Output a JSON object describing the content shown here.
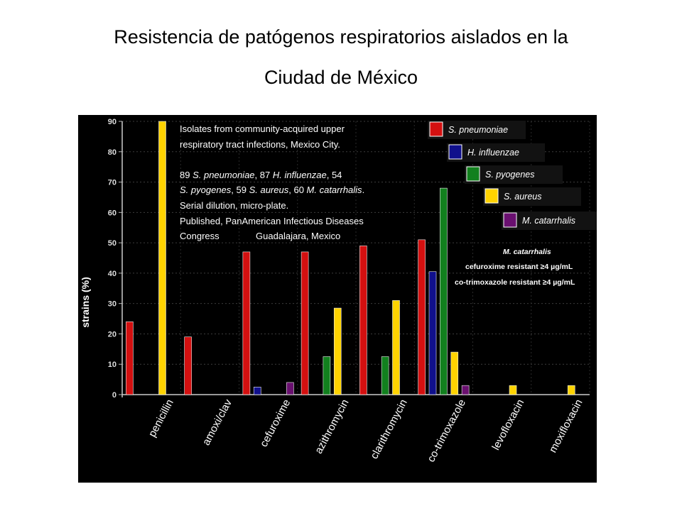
{
  "page": {
    "title_line1": "Resistencia de patógenos respiratorios aislados en la",
    "title_line2": "Ciudad de México"
  },
  "chart_data": {
    "type": "bar",
    "ylabel": "strains (%)",
    "ylim": [
      0,
      90
    ],
    "yticks": [
      0,
      10,
      20,
      30,
      40,
      50,
      60,
      70,
      80,
      90
    ],
    "grid": true,
    "categories": [
      "penicillin",
      "amoxi/clav",
      "cefuroxime",
      "azithromycin",
      "clarithromycin",
      "co-trimoxazole",
      "levofloxacin",
      "moxifloxacin"
    ],
    "series": [
      {
        "name": "S. pneumoniae",
        "color": "#d41010",
        "values": [
          24,
          19,
          47,
          47,
          49,
          51,
          0,
          0
        ]
      },
      {
        "name": "H. influenzae",
        "color": "#10108c",
        "values": [
          0,
          0,
          2.5,
          0,
          0,
          40.5,
          0,
          0
        ]
      },
      {
        "name": "S. pyogenes",
        "color": "#12801e",
        "values": [
          0,
          0,
          0,
          12.5,
          12.5,
          68,
          0,
          0
        ]
      },
      {
        "name": "S. aureus",
        "color": "#ffd300",
        "values": [
          90,
          0,
          0,
          28.5,
          31,
          14,
          3,
          3
        ]
      },
      {
        "name": "M. catarrhalis",
        "color": "#6a1070",
        "values": [
          0,
          0,
          4,
          0,
          0,
          3,
          0,
          0
        ]
      }
    ],
    "annotation": {
      "line1": "Isolates from community-acquired upper",
      "line2": "respiratory tract infections, Mexico City.",
      "line3_parts": [
        {
          "text": "89 ",
          "italic": false
        },
        {
          "text": "S. pneumoniae",
          "italic": true
        },
        {
          "text": ", 87 ",
          "italic": false
        },
        {
          "text": "H. influenzae",
          "italic": true
        },
        {
          "text": ", 54",
          "italic": false
        }
      ],
      "line4_parts": [
        {
          "text": "S. pyogenes",
          "italic": true
        },
        {
          "text": ", 59 ",
          "italic": false
        },
        {
          "text": "S. aureus",
          "italic": true
        },
        {
          "text": ", 60 ",
          "italic": false
        },
        {
          "text": "M. catarrhalis",
          "italic": true
        },
        {
          "text": ".",
          "italic": false
        }
      ],
      "line5": "Serial dilution, micro-plate.",
      "line6": "Published, PanAmerican Infectious Diseases",
      "line7a": "Congress",
      "line7b": "Guadalajara, Mexico"
    },
    "note": {
      "title": "M. catarrhalis",
      "line1": "cefuroxime resistant ≥4 µg/mL",
      "line2": "co-trimoxazole resistant ≥4 µg/mL"
    }
  }
}
